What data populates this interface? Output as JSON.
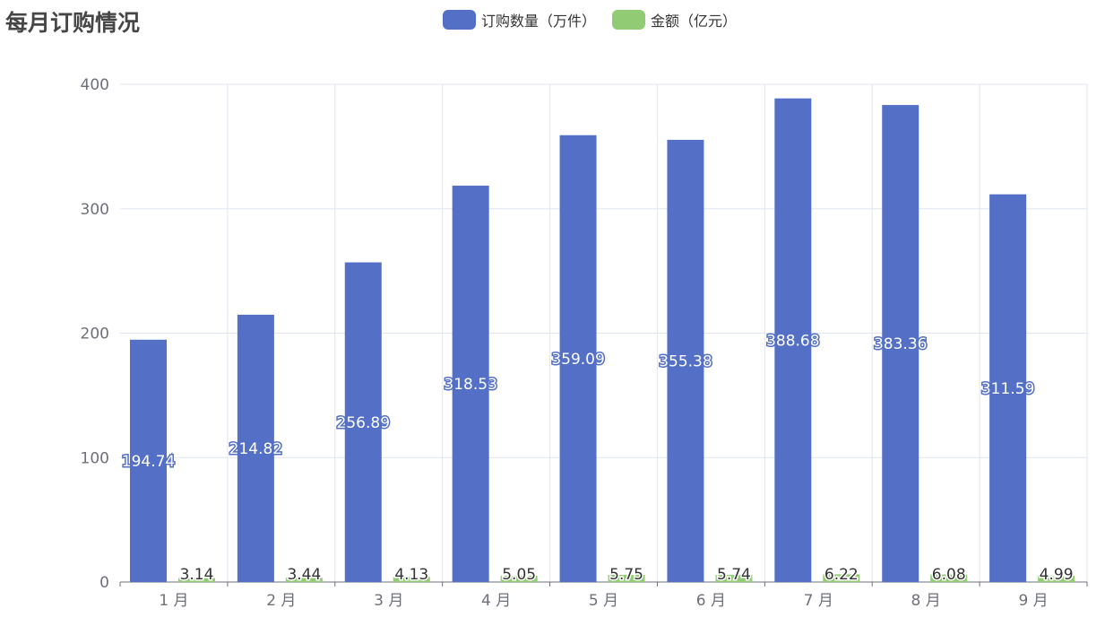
{
  "chart_data": {
    "type": "bar",
    "title": "每月订购情况",
    "categories": [
      "1 月",
      "2 月",
      "3 月",
      "4 月",
      "5 月",
      "6 月",
      "7 月",
      "8 月",
      "9 月"
    ],
    "series": [
      {
        "name": "订购数量（万件）",
        "color": "#5470c6",
        "values": [
          194.74,
          214.82,
          256.89,
          318.53,
          359.09,
          355.38,
          388.68,
          383.36,
          311.59
        ]
      },
      {
        "name": "金额（亿元）",
        "color": "#91cc75",
        "values": [
          3.14,
          3.44,
          4.13,
          5.05,
          5.75,
          5.74,
          6.22,
          6.08,
          4.99
        ]
      }
    ],
    "ylim": [
      0,
      400
    ],
    "yticks": [
      0,
      100,
      200,
      300,
      400
    ],
    "grid": true,
    "legend_position": "top-center"
  }
}
